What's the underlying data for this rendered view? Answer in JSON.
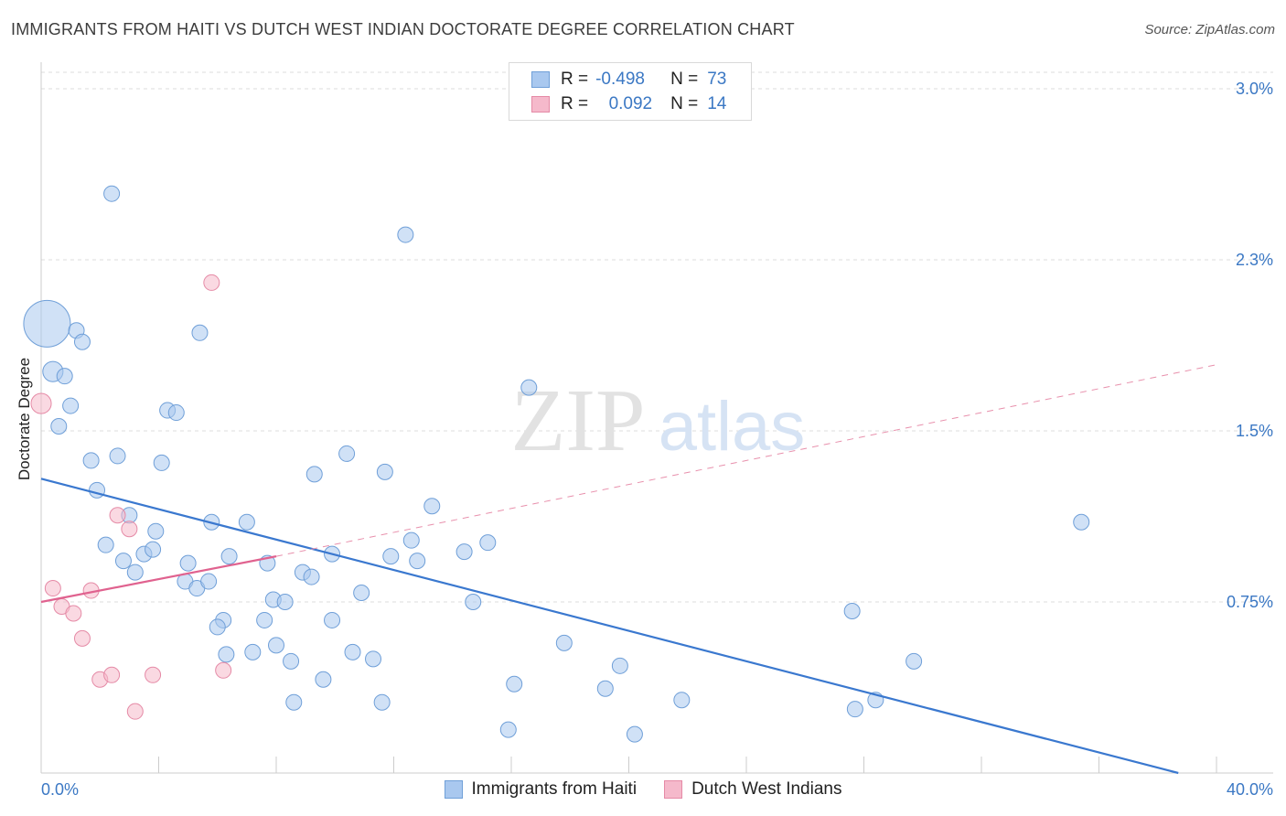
{
  "title": "IMMIGRANTS FROM HAITI VS DUTCH WEST INDIAN DOCTORATE DEGREE CORRELATION CHART",
  "source": "Source: ZipAtlas.com",
  "watermark": {
    "zip": "ZIP",
    "atlas": "atlas"
  },
  "legend": {
    "rows": [
      {
        "r_label": "R =",
        "r_value": "-0.498",
        "n_label": "N =",
        "n_value": "73",
        "color": "#a9c8ef"
      },
      {
        "r_label": "R =",
        "r_value": "0.092",
        "n_label": "N =",
        "n_value": "14",
        "color": "#f5b9cb"
      }
    ]
  },
  "bottom_legend": [
    {
      "label": "Immigrants from Haiti",
      "color": "#a9c8ef"
    },
    {
      "label": "Dutch West Indians",
      "color": "#f5b9cb"
    }
  ],
  "chart_data": {
    "type": "scatter",
    "title": "IMMIGRANTS FROM HAITI VS DUTCH WEST INDIAN DOCTORATE DEGREE CORRELATION CHART",
    "xlabel": "",
    "ylabel": "Doctorate Degree",
    "xlim": [
      0,
      40
    ],
    "ylim": [
      0,
      3.0
    ],
    "x_tick_labels": {
      "min": "0.0%",
      "max": "40.0%"
    },
    "y_ticks": [
      {
        "value": 3.0,
        "label": "3.0%"
      },
      {
        "value": 2.25,
        "label": "2.3%"
      },
      {
        "value": 1.5,
        "label": "1.5%"
      },
      {
        "value": 0.75,
        "label": "0.75%"
      }
    ],
    "grid": true,
    "series": [
      {
        "name": "Immigrants from Haiti",
        "color": "#a9c8ef",
        "stroke": "#6f9fd8",
        "trend": {
          "x": [
            0,
            38.7
          ],
          "y": [
            1.29,
            0.0
          ],
          "color": "#3a78cf",
          "style": "solid"
        },
        "points": [
          [
            0.2,
            1.97,
            3
          ],
          [
            2.4,
            2.54,
            1
          ],
          [
            12.4,
            2.36,
            1
          ],
          [
            1.2,
            1.94,
            1
          ],
          [
            1.4,
            1.89,
            1
          ],
          [
            5.4,
            1.93,
            1
          ],
          [
            0.4,
            1.76,
            1.3
          ],
          [
            0.8,
            1.74,
            1
          ],
          [
            1.0,
            1.61,
            1
          ],
          [
            0.6,
            1.52,
            1
          ],
          [
            4.3,
            1.59,
            1
          ],
          [
            4.6,
            1.58,
            1
          ],
          [
            16.6,
            1.69,
            1
          ],
          [
            1.7,
            1.37,
            1
          ],
          [
            2.6,
            1.39,
            1
          ],
          [
            4.1,
            1.36,
            1
          ],
          [
            10.4,
            1.4,
            1
          ],
          [
            11.7,
            1.32,
            1
          ],
          [
            9.3,
            1.31,
            1
          ],
          [
            1.9,
            1.24,
            1
          ],
          [
            3.0,
            1.13,
            1
          ],
          [
            5.8,
            1.1,
            1
          ],
          [
            7.0,
            1.1,
            1
          ],
          [
            13.3,
            1.17,
            1
          ],
          [
            3.9,
            1.06,
            1
          ],
          [
            2.2,
            1.0,
            1
          ],
          [
            3.5,
            0.96,
            1
          ],
          [
            3.8,
            0.98,
            1
          ],
          [
            2.8,
            0.93,
            1
          ],
          [
            5.0,
            0.92,
            1
          ],
          [
            6.4,
            0.95,
            1
          ],
          [
            7.7,
            0.92,
            1
          ],
          [
            9.9,
            0.96,
            1
          ],
          [
            11.9,
            0.95,
            1
          ],
          [
            12.6,
            1.02,
            1
          ],
          [
            12.8,
            0.93,
            1
          ],
          [
            14.4,
            0.97,
            1
          ],
          [
            15.2,
            1.01,
            1
          ],
          [
            3.2,
            0.88,
            1
          ],
          [
            4.9,
            0.84,
            1
          ],
          [
            5.3,
            0.81,
            1
          ],
          [
            5.7,
            0.84,
            1
          ],
          [
            8.9,
            0.88,
            1
          ],
          [
            9.2,
            0.86,
            1
          ],
          [
            10.9,
            0.79,
            1
          ],
          [
            7.9,
            0.76,
            1
          ],
          [
            8.3,
            0.75,
            1
          ],
          [
            14.7,
            0.75,
            1
          ],
          [
            6.2,
            0.67,
            1
          ],
          [
            7.6,
            0.67,
            1
          ],
          [
            6.0,
            0.64,
            1
          ],
          [
            9.9,
            0.67,
            1
          ],
          [
            6.3,
            0.52,
            1
          ],
          [
            7.2,
            0.53,
            1
          ],
          [
            8.0,
            0.56,
            1
          ],
          [
            8.5,
            0.49,
            1
          ],
          [
            10.6,
            0.53,
            1
          ],
          [
            11.3,
            0.5,
            1
          ],
          [
            9.6,
            0.41,
            1
          ],
          [
            8.6,
            0.31,
            1
          ],
          [
            11.6,
            0.31,
            1
          ],
          [
            16.1,
            0.39,
            1
          ],
          [
            15.9,
            0.19,
            1
          ],
          [
            17.8,
            0.57,
            1
          ],
          [
            19.2,
            0.37,
            1
          ],
          [
            19.7,
            0.47,
            1
          ],
          [
            20.2,
            0.17,
            1
          ],
          [
            21.8,
            0.32,
            1
          ],
          [
            27.7,
            0.28,
            1
          ],
          [
            28.4,
            0.32,
            1
          ],
          [
            27.6,
            0.71,
            1
          ],
          [
            29.7,
            0.49,
            1
          ],
          [
            35.4,
            1.1,
            1
          ]
        ]
      },
      {
        "name": "Dutch West Indians",
        "color": "#f5b9cb",
        "stroke": "#e58aa6",
        "trend": {
          "x": [
            0,
            8.0
          ],
          "y": [
            0.75,
            0.95
          ],
          "color": "#e0628f",
          "style": "solid"
        },
        "trend_extended": {
          "x": [
            8.0,
            40.0
          ],
          "y": [
            0.95,
            1.79
          ],
          "color": "#e890ac",
          "style": "dashed"
        },
        "points": [
          [
            0.0,
            1.62,
            1.3
          ],
          [
            5.8,
            2.15,
            1
          ],
          [
            2.6,
            1.13,
            1
          ],
          [
            3.0,
            1.07,
            1
          ],
          [
            0.4,
            0.81,
            1
          ],
          [
            1.7,
            0.8,
            1
          ],
          [
            0.7,
            0.73,
            1
          ],
          [
            1.1,
            0.7,
            1
          ],
          [
            1.4,
            0.59,
            1
          ],
          [
            2.0,
            0.41,
            1
          ],
          [
            2.4,
            0.43,
            1
          ],
          [
            3.8,
            0.43,
            1
          ],
          [
            6.2,
            0.45,
            1
          ],
          [
            3.2,
            0.27,
            1
          ]
        ]
      }
    ]
  }
}
